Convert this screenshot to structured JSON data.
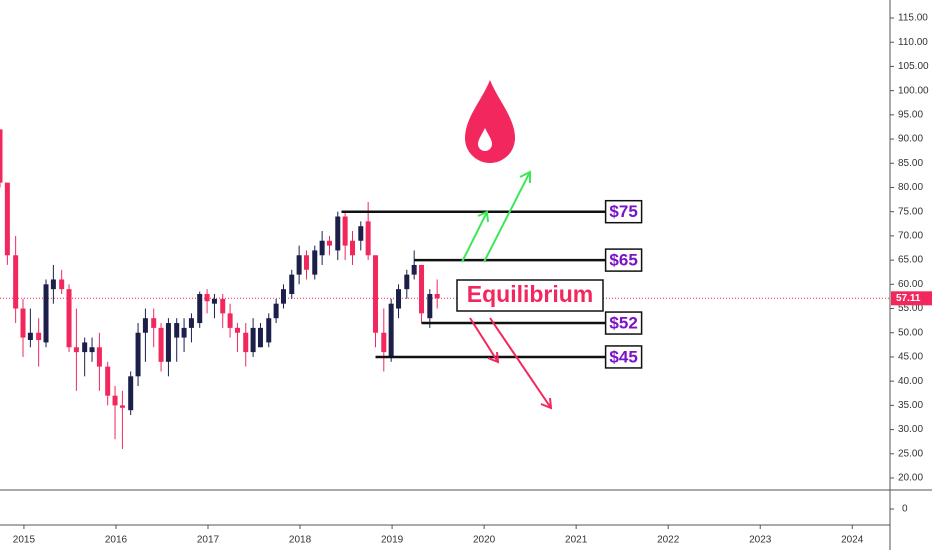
{
  "chart_data": {
    "type": "candlestick",
    "x": [
      2014.74,
      2014.82,
      2014.91,
      2014.99,
      2015.07,
      2015.16,
      2015.24,
      2015.32,
      2015.41,
      2015.49,
      2015.57,
      2015.66,
      2015.74,
      2015.82,
      2015.91,
      2015.99,
      2016.07,
      2016.16,
      2016.24,
      2016.32,
      2016.41,
      2016.49,
      2016.57,
      2016.66,
      2016.74,
      2016.82,
      2016.91,
      2016.99,
      2017.07,
      2017.16,
      2017.24,
      2017.32,
      2017.41,
      2017.49,
      2017.57,
      2017.66,
      2017.74,
      2017.82,
      2017.91,
      2017.99,
      2018.07,
      2018.16,
      2018.24,
      2018.32,
      2018.41,
      2018.49,
      2018.57,
      2018.66,
      2018.74,
      2018.82,
      2018.91,
      2018.99,
      2019.07,
      2019.16,
      2019.24,
      2019.32,
      2019.41,
      2019.49
    ],
    "open": [
      92,
      81,
      66,
      55,
      48.5,
      50,
      48,
      59,
      61,
      59,
      47,
      46,
      46,
      47,
      43,
      37,
      35,
      34,
      41,
      50,
      53,
      51,
      44,
      49,
      49,
      51,
      52,
      58,
      56,
      57,
      54,
      51,
      50,
      46,
      47,
      48,
      53,
      56,
      58,
      62,
      66,
      62,
      66,
      69,
      67,
      74,
      69,
      69,
      73,
      66,
      50,
      45,
      55,
      59,
      62,
      64,
      53,
      58
    ],
    "high": [
      92,
      81,
      70,
      57,
      55,
      53,
      61,
      64,
      63,
      60,
      55,
      49,
      49,
      50,
      44,
      39,
      38,
      42,
      52,
      55,
      55,
      52,
      53,
      53,
      53,
      54,
      58.5,
      59,
      58,
      58,
      56,
      52,
      52,
      53,
      52,
      54,
      57,
      60,
      63,
      68,
      67,
      68,
      71,
      70,
      75,
      75,
      71,
      73,
      77,
      66,
      55,
      57,
      60,
      63,
      67,
      64,
      59,
      61
    ],
    "low": [
      80,
      64,
      52,
      45,
      47,
      43,
      47,
      56,
      58,
      46,
      38,
      41,
      44,
      38,
      35,
      28,
      26,
      33,
      39,
      44,
      47,
      42,
      41,
      44,
      46,
      48,
      51,
      54,
      53,
      51,
      49,
      46,
      43,
      45,
      47,
      47,
      52,
      55,
      57,
      60,
      61,
      61,
      64,
      66,
      65,
      65,
      64,
      67,
      65,
      47,
      42,
      44,
      53,
      57,
      61,
      52,
      51,
      55
    ],
    "close": [
      81,
      66,
      55,
      49,
      50,
      48.5,
      60,
      61,
      59,
      47,
      46,
      48,
      47,
      43,
      37,
      35,
      34.5,
      41,
      50,
      53,
      51,
      44,
      52,
      52,
      51,
      53,
      58,
      56.5,
      57,
      54,
      51,
      50,
      46,
      51,
      51,
      53,
      56,
      59,
      62,
      66,
      63,
      67,
      69,
      68,
      74,
      68,
      66,
      72,
      66,
      50,
      46,
      56,
      59,
      62,
      64,
      54,
      58,
      57.11
    ],
    "up_color": "#1c1f4a",
    "down_color": "#f2275d",
    "xlim": [
      2014.74,
      2024.41
    ],
    "xticks": [
      2015,
      2016,
      2017,
      2018,
      2019,
      2020,
      2021,
      2022,
      2023,
      2024
    ],
    "ylim": [
      17.52,
      118.72
    ],
    "yticks": [
      {
        "value": 20,
        "label": "20.00"
      },
      {
        "value": 25,
        "label": "25.00"
      },
      {
        "value": 30,
        "label": "30.00"
      },
      {
        "value": 35,
        "label": "35.00"
      },
      {
        "value": 40,
        "label": "40.00"
      },
      {
        "value": 45,
        "label": "45.00"
      },
      {
        "value": 50,
        "label": "50.00"
      },
      {
        "value": 55,
        "label": "55.00"
      },
      {
        "value": 60,
        "label": "60.00"
      },
      {
        "value": 65,
        "label": "65.00"
      },
      {
        "value": 70,
        "label": "70.00"
      },
      {
        "value": 75,
        "label": "75.00"
      },
      {
        "value": 80,
        "label": "80.00"
      },
      {
        "value": 85,
        "label": "85.00"
      },
      {
        "value": 90,
        "label": "90.00"
      },
      {
        "value": 95,
        "label": "95.00"
      },
      {
        "value": 100,
        "label": "100.00"
      },
      {
        "value": 105,
        "label": "105.00"
      },
      {
        "value": 110,
        "label": "110.00"
      },
      {
        "value": 115,
        "label": "115.00"
      }
    ],
    "lower_pane": {
      "yticks": [
        0
      ]
    },
    "last_price": 57.11,
    "last_price_color": "#f2275d",
    "levels": [
      {
        "value": 75,
        "label": "$75",
        "x": [
          2018.45,
          2021.32
        ]
      },
      {
        "value": 65,
        "label": "$65",
        "x": [
          2019.24,
          2021.32
        ]
      },
      {
        "value": 52,
        "label": "$52",
        "x": [
          2019.32,
          2021.32
        ]
      },
      {
        "value": 45,
        "label": "$45",
        "x": [
          2018.82,
          2021.32
        ]
      }
    ],
    "equilibrium_label": "Equilibrium"
  }
}
